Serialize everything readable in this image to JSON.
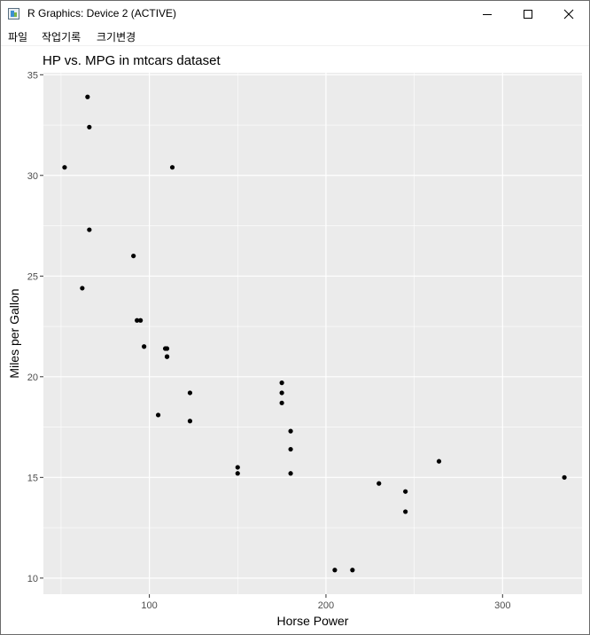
{
  "window": {
    "title": "R Graphics: Device 2 (ACTIVE)",
    "icons": {
      "app": "r-graphics-app-icon",
      "minimize": "minimize-icon",
      "maximize": "maximize-icon",
      "close": "close-icon"
    }
  },
  "menu": {
    "items": [
      {
        "label": "파일"
      },
      {
        "label": "작업기록"
      },
      {
        "label": "크기변경"
      }
    ]
  },
  "chart_data": {
    "type": "scatter",
    "title": "HP vs. MPG in mtcars dataset",
    "xlabel": "Horse Power",
    "ylabel": "Miles per Gallon",
    "xlim": [
      40,
      345
    ],
    "ylim": [
      9.2,
      35.1
    ],
    "xticks": [
      100,
      200,
      300
    ],
    "yticks": [
      10,
      15,
      20,
      25,
      30,
      35
    ],
    "grid": true,
    "legend": "none",
    "colors": {
      "panel": "#ebebeb",
      "grid_major": "#ffffff",
      "point": "#000000",
      "axis_text": "#4d4d4d"
    },
    "points": [
      {
        "x": 110,
        "y": 21.0
      },
      {
        "x": 110,
        "y": 21.0
      },
      {
        "x": 93,
        "y": 22.8
      },
      {
        "x": 110,
        "y": 21.4
      },
      {
        "x": 175,
        "y": 18.7
      },
      {
        "x": 105,
        "y": 18.1
      },
      {
        "x": 245,
        "y": 14.3
      },
      {
        "x": 62,
        "y": 24.4
      },
      {
        "x": 95,
        "y": 22.8
      },
      {
        "x": 123,
        "y": 19.2
      },
      {
        "x": 123,
        "y": 17.8
      },
      {
        "x": 180,
        "y": 16.4
      },
      {
        "x": 180,
        "y": 17.3
      },
      {
        "x": 180,
        "y": 15.2
      },
      {
        "x": 205,
        "y": 10.4
      },
      {
        "x": 215,
        "y": 10.4
      },
      {
        "x": 230,
        "y": 14.7
      },
      {
        "x": 66,
        "y": 32.4
      },
      {
        "x": 52,
        "y": 30.4
      },
      {
        "x": 65,
        "y": 33.9
      },
      {
        "x": 97,
        "y": 21.5
      },
      {
        "x": 150,
        "y": 15.5
      },
      {
        "x": 150,
        "y": 15.2
      },
      {
        "x": 245,
        "y": 13.3
      },
      {
        "x": 175,
        "y": 19.2
      },
      {
        "x": 66,
        "y": 27.3
      },
      {
        "x": 91,
        "y": 26.0
      },
      {
        "x": 113,
        "y": 30.4
      },
      {
        "x": 264,
        "y": 15.8
      },
      {
        "x": 175,
        "y": 19.7
      },
      {
        "x": 335,
        "y": 15.0
      },
      {
        "x": 109,
        "y": 21.4
      }
    ]
  }
}
